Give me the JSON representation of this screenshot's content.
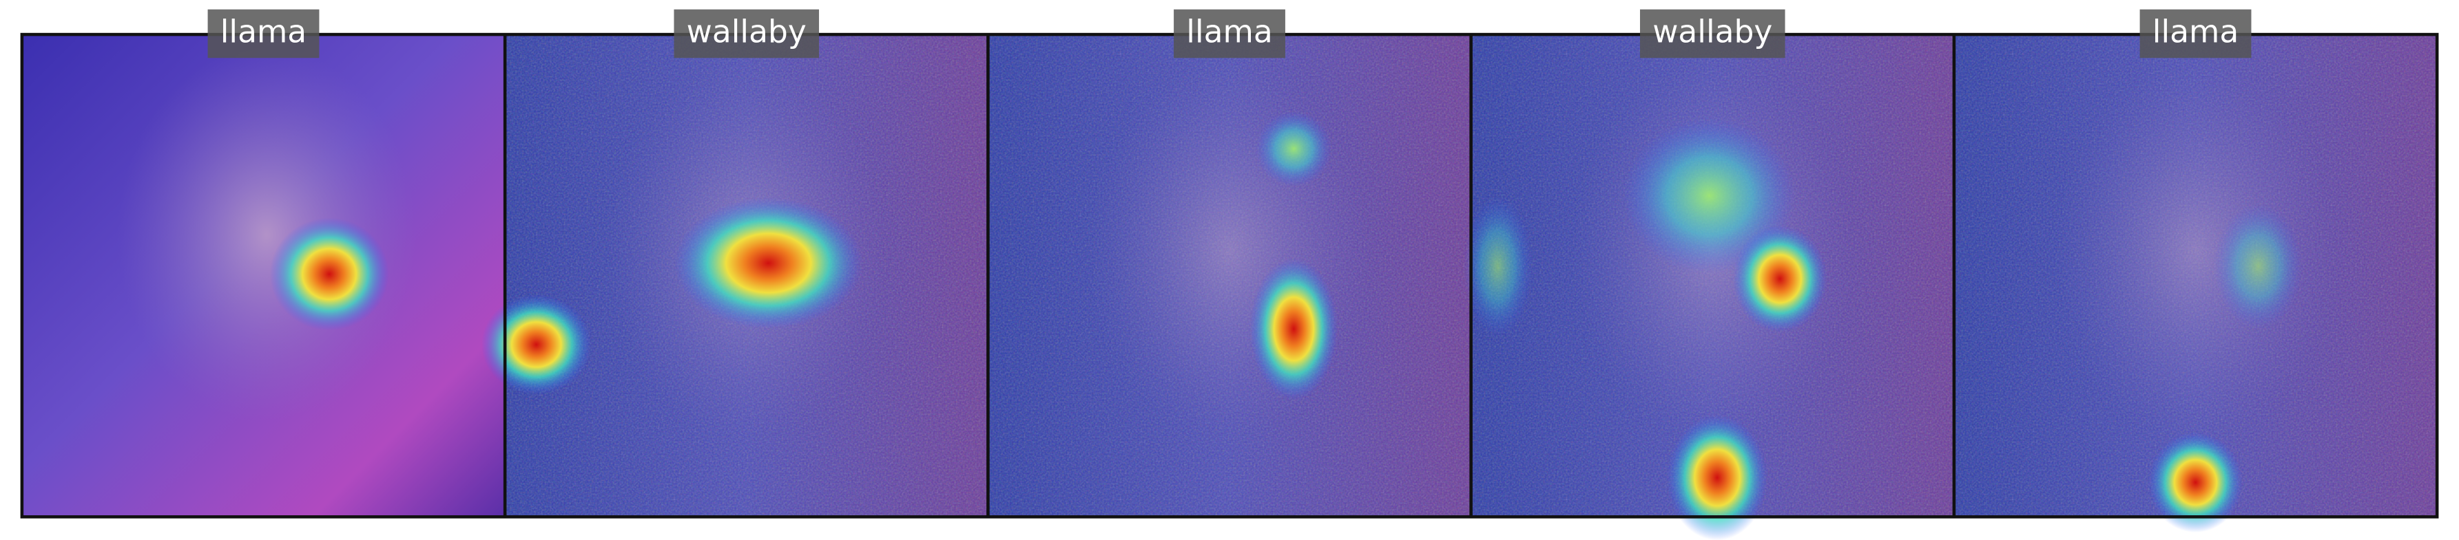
{
  "panels": [
    {
      "label": "llama"
    },
    {
      "label": "wallaby"
    },
    {
      "label": "llama"
    },
    {
      "label": "wallaby"
    },
    {
      "label": "llama"
    }
  ]
}
